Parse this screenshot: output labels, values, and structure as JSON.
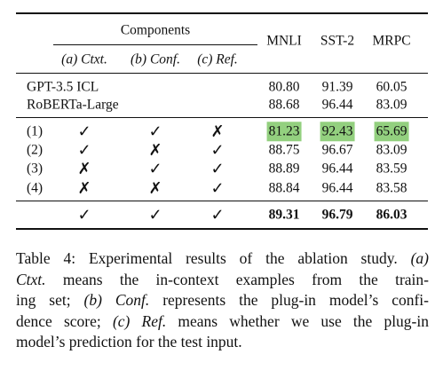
{
  "table": {
    "header": {
      "components": "Components",
      "subcolumns": [
        "(a) Ctxt.",
        "(b) Conf.",
        "(c) Ref."
      ],
      "metrics": [
        "MNLI",
        "SST-2",
        "MRPC"
      ]
    },
    "baselines": [
      {
        "name": "GPT-3.5 ICL",
        "scores": [
          "80.80",
          "91.39",
          "60.05"
        ]
      },
      {
        "name": "RoBERTa-Large",
        "scores": [
          "88.68",
          "96.44",
          "83.09"
        ]
      }
    ],
    "ablations": [
      {
        "label": "(1)",
        "marks": [
          "✓",
          "✓",
          "✗"
        ],
        "scores": [
          "81.23",
          "92.43",
          "65.69"
        ],
        "highlight": true
      },
      {
        "label": "(2)",
        "marks": [
          "✓",
          "✗",
          "✓"
        ],
        "scores": [
          "88.75",
          "96.67",
          "83.09"
        ],
        "highlight": false
      },
      {
        "label": "(3)",
        "marks": [
          "✗",
          "✓",
          "✓"
        ],
        "scores": [
          "88.89",
          "96.44",
          "83.59"
        ],
        "highlight": false
      },
      {
        "label": "(4)",
        "marks": [
          "✗",
          "✗",
          "✓"
        ],
        "scores": [
          "88.84",
          "96.44",
          "83.58"
        ],
        "highlight": false
      }
    ],
    "full": {
      "marks": [
        "✓",
        "✓",
        "✓"
      ],
      "scores": [
        "89.31",
        "96.79",
        "86.03"
      ],
      "bold": true
    },
    "highlight_color": "#93d07f"
  },
  "caption": {
    "lines": [
      [
        {
          "text": "Table 4: Experimental results of the ablation study. ",
          "italic": false
        },
        {
          "text": "(a)",
          "italic": true
        }
      ],
      [
        {
          "text": "Ctxt.",
          "italic": true
        },
        {
          "text": " means the in-context examples from the train-",
          "italic": false
        }
      ],
      [
        {
          "text": "ing set; ",
          "italic": false
        },
        {
          "text": "(b) Conf.",
          "italic": true
        },
        {
          "text": " represents the plug-in model’s confi-",
          "italic": false
        }
      ],
      [
        {
          "text": "dence score; ",
          "italic": false
        },
        {
          "text": "(c) Ref.",
          "italic": true
        },
        {
          "text": " means whether we use the plug-in",
          "italic": false
        }
      ],
      [
        {
          "text": "model’s prediction for the test input.",
          "italic": false
        }
      ]
    ]
  }
}
